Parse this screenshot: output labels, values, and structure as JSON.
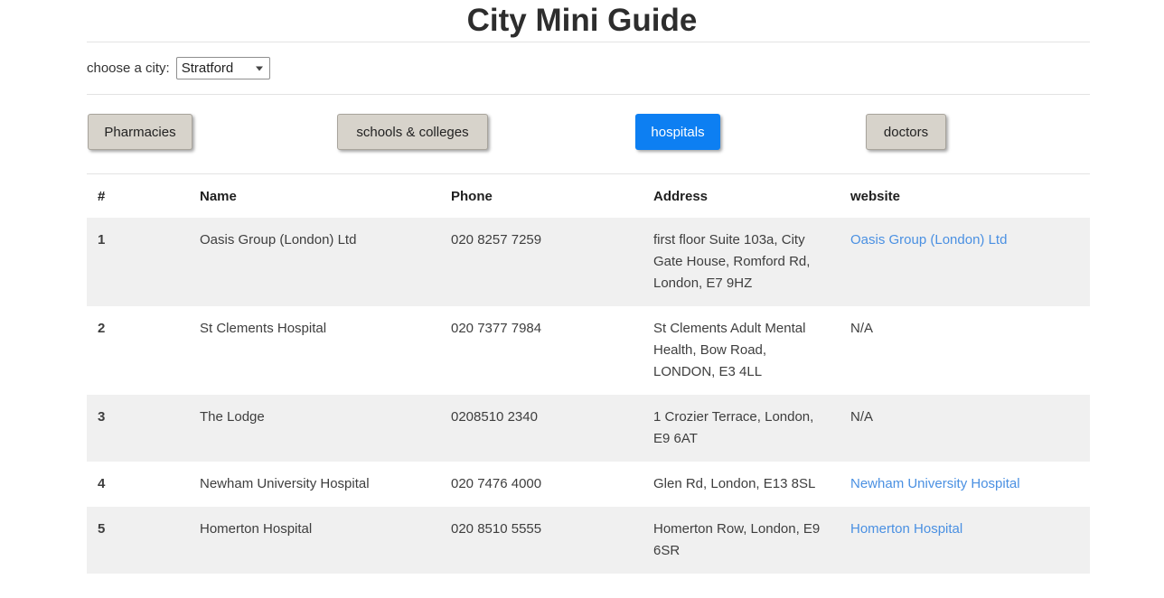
{
  "page": {
    "title": "City Mini Guide"
  },
  "city_chooser": {
    "label": "choose a city:",
    "selected": "Stratford"
  },
  "category_buttons": [
    {
      "label": "Pharmacies",
      "active": false
    },
    {
      "label": "schools & colleges",
      "active": false
    },
    {
      "label": "hospitals",
      "active": true
    },
    {
      "label": "doctors",
      "active": false
    }
  ],
  "table": {
    "columns": [
      "#",
      "Name",
      "Phone",
      "Address",
      "website"
    ],
    "rows": [
      {
        "num": "1",
        "name": "Oasis Group (London) Ltd",
        "phone": "020 8257 7259",
        "address": "first floor Suite 103a, City Gate House, Romford Rd, London, E7 9HZ",
        "website": "Oasis Group (London) Ltd",
        "website_is_link": true
      },
      {
        "num": "2",
        "name": "St Clements Hospital",
        "phone": "020 7377 7984",
        "address": "St Clements Adult Mental Health, Bow Road, LONDON, E3 4LL",
        "website": "N/A",
        "website_is_link": false
      },
      {
        "num": "3",
        "name": "The Lodge",
        "phone": "0208510 2340",
        "address": "1 Crozier Terrace, London, E9 6AT",
        "website": "N/A",
        "website_is_link": false
      },
      {
        "num": "4",
        "name": "Newham University Hospital",
        "phone": "020 7476 4000",
        "address": "Glen Rd, London, E13 8SL",
        "website": "Newham University Hospital",
        "website_is_link": true
      },
      {
        "num": "5",
        "name": "Homerton Hospital",
        "phone": "020 8510 5555",
        "address": "Homerton Row, London, E9 6SR",
        "website": "Homerton Hospital",
        "website_is_link": true
      }
    ]
  },
  "colors": {
    "accent_blue": "#0d7ff2",
    "link_blue": "#4a90e2",
    "button_grey": "#d7d3cb",
    "stripe_grey": "#f0f0f0"
  }
}
